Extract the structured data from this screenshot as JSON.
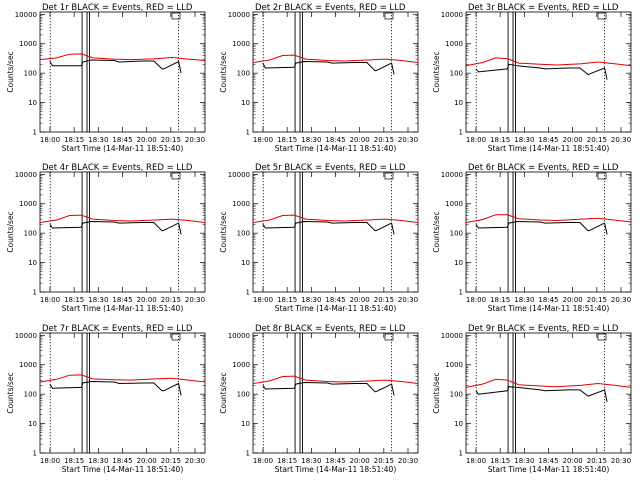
{
  "chart_data": [
    {
      "type": "line",
      "title": "Det 1r BLACK = Events, RED = LLD",
      "xlabel": "Start Time (14-Mar-11 18:51:40)",
      "ylabel": "Counts/sec",
      "x_ticks": [
        "18:00",
        "18:15",
        "18:30",
        "18:45",
        "20:00",
        "20:15",
        "20:30"
      ],
      "y_ticks": [
        "1",
        "10",
        "100",
        "1000",
        "10000"
      ],
      "yscale": "log",
      "ylim": [
        1,
        12000
      ],
      "vlines_dotted": [
        0.062,
        0.84
      ],
      "vlines_solid": [
        0.255,
        0.285,
        0.3
      ],
      "series": [
        {
          "color": "#000000",
          "x": [
            0.06,
            0.075,
            0.25,
            0.26,
            0.31,
            0.45,
            0.48,
            0.62,
            0.69,
            0.74,
            0.75,
            0.84,
            0.855
          ],
          "y": [
            250,
            180,
            180,
            240,
            280,
            270,
            240,
            260,
            260,
            140,
            140,
            250,
            100
          ]
        },
        {
          "color": "#e00000",
          "x": [
            0,
            0.1,
            0.18,
            0.25,
            0.32,
            0.45,
            0.55,
            0.7,
            0.8,
            0.9,
            1.0
          ],
          "y": [
            290,
            330,
            440,
            450,
            330,
            300,
            290,
            310,
            340,
            300,
            270
          ]
        }
      ]
    },
    {
      "type": "line",
      "title": "Det 2r BLACK = Events, RED = LLD",
      "xlabel": "Start Time (14-Mar-11 18:51:40)",
      "ylabel": "Counts/sec",
      "x_ticks": [
        "18:00",
        "18:15",
        "18:30",
        "18:45",
        "20:00",
        "20:15",
        "20:30"
      ],
      "y_ticks": [
        "1",
        "10",
        "100",
        "1000",
        "10000"
      ],
      "yscale": "log",
      "ylim": [
        1,
        12000
      ],
      "vlines_dotted": [
        0.062,
        0.84
      ],
      "vlines_solid": [
        0.255,
        0.285,
        0.3
      ],
      "series": [
        {
          "color": "#000000",
          "x": [
            0.06,
            0.075,
            0.25,
            0.26,
            0.31,
            0.45,
            0.48,
            0.62,
            0.69,
            0.74,
            0.75,
            0.84,
            0.855
          ],
          "y": [
            220,
            150,
            160,
            220,
            250,
            240,
            220,
            230,
            230,
            120,
            125,
            220,
            90
          ]
        },
        {
          "color": "#e00000",
          "x": [
            0,
            0.1,
            0.18,
            0.25,
            0.32,
            0.45,
            0.55,
            0.7,
            0.8,
            0.9,
            1.0
          ],
          "y": [
            230,
            280,
            400,
            410,
            300,
            270,
            260,
            280,
            300,
            270,
            230
          ]
        }
      ]
    },
    {
      "type": "line",
      "title": "Det 3r BLACK = Events, RED = LLD",
      "xlabel": "Start Time (14-Mar-11 18:51:40)",
      "ylabel": "Counts/sec",
      "x_ticks": [
        "18:00",
        "18:15",
        "18:30",
        "18:45",
        "20:00",
        "20:15",
        "20:30"
      ],
      "y_ticks": [
        "1",
        "10",
        "100",
        "1000",
        "10000"
      ],
      "yscale": "log",
      "ylim": [
        1,
        12000
      ],
      "vlines_dotted": [
        0.062,
        0.84
      ],
      "vlines_solid": [
        0.255,
        0.285,
        0.3
      ],
      "series": [
        {
          "color": "#000000",
          "x": [
            0.06,
            0.075,
            0.25,
            0.26,
            0.31,
            0.45,
            0.48,
            0.62,
            0.69,
            0.74,
            0.75,
            0.84,
            0.855
          ],
          "y": [
            140,
            110,
            140,
            200,
            180,
            150,
            140,
            150,
            150,
            90,
            95,
            150,
            60
          ]
        },
        {
          "color": "#e00000",
          "x": [
            0,
            0.1,
            0.18,
            0.25,
            0.32,
            0.45,
            0.55,
            0.7,
            0.8,
            0.9,
            1.0
          ],
          "y": [
            180,
            230,
            330,
            310,
            220,
            200,
            190,
            210,
            240,
            210,
            180
          ]
        }
      ]
    },
    {
      "type": "line",
      "title": "Det 4r BLACK = Events, RED = LLD",
      "xlabel": "Start Time (14-Mar-11 18:51:40)",
      "ylabel": "Counts/sec",
      "x_ticks": [
        "18:00",
        "18:15",
        "18:30",
        "18:45",
        "20:00",
        "20:15",
        "20:30"
      ],
      "y_ticks": [
        "1",
        "10",
        "100",
        "1000",
        "10000"
      ],
      "yscale": "log",
      "ylim": [
        1,
        12000
      ],
      "vlines_dotted": [
        0.062,
        0.84
      ],
      "vlines_solid": [
        0.255,
        0.285,
        0.3
      ],
      "series": [
        {
          "color": "#000000",
          "x": [
            0.06,
            0.075,
            0.25,
            0.26,
            0.31,
            0.45,
            0.48,
            0.62,
            0.69,
            0.74,
            0.75,
            0.84,
            0.855
          ],
          "y": [
            200,
            150,
            160,
            220,
            250,
            240,
            220,
            230,
            230,
            120,
            125,
            220,
            90
          ]
        },
        {
          "color": "#e00000",
          "x": [
            0,
            0.1,
            0.18,
            0.25,
            0.32,
            0.45,
            0.55,
            0.7,
            0.8,
            0.9,
            1.0
          ],
          "y": [
            230,
            280,
            400,
            410,
            300,
            270,
            260,
            280,
            300,
            270,
            230
          ]
        }
      ]
    },
    {
      "type": "line",
      "title": "Det 5r BLACK = Events, RED = LLD",
      "xlabel": "Start Time (14-Mar-11 18:51:40)",
      "ylabel": "Counts/sec",
      "x_ticks": [
        "18:00",
        "18:15",
        "18:30",
        "18:45",
        "20:00",
        "20:15",
        "20:30"
      ],
      "y_ticks": [
        "1",
        "10",
        "100",
        "1000",
        "10000"
      ],
      "yscale": "log",
      "ylim": [
        1,
        12000
      ],
      "vlines_dotted": [
        0.062,
        0.84
      ],
      "vlines_solid": [
        0.255,
        0.285,
        0.3
      ],
      "series": [
        {
          "color": "#000000",
          "x": [
            0.06,
            0.075,
            0.25,
            0.26,
            0.31,
            0.45,
            0.48,
            0.62,
            0.69,
            0.74,
            0.75,
            0.84,
            0.855
          ],
          "y": [
            200,
            150,
            160,
            220,
            250,
            240,
            220,
            230,
            230,
            120,
            125,
            220,
            90
          ]
        },
        {
          "color": "#e00000",
          "x": [
            0,
            0.1,
            0.18,
            0.25,
            0.32,
            0.45,
            0.55,
            0.7,
            0.8,
            0.9,
            1.0
          ],
          "y": [
            230,
            280,
            400,
            410,
            300,
            270,
            260,
            280,
            300,
            270,
            230
          ]
        }
      ]
    },
    {
      "type": "line",
      "title": "Det 6r BLACK = Events, RED = LLD",
      "xlabel": "Start Time (14-Mar-11 18:51:40)",
      "ylabel": "Counts/sec",
      "x_ticks": [
        "18:00",
        "18:15",
        "18:30",
        "18:45",
        "20:00",
        "20:15",
        "20:30"
      ],
      "y_ticks": [
        "1",
        "10",
        "100",
        "1000",
        "10000"
      ],
      "yscale": "log",
      "ylim": [
        1,
        12000
      ],
      "vlines_dotted": [
        0.062,
        0.84
      ],
      "vlines_solid": [
        0.255,
        0.285,
        0.3
      ],
      "series": [
        {
          "color": "#000000",
          "x": [
            0.06,
            0.075,
            0.25,
            0.26,
            0.31,
            0.45,
            0.48,
            0.62,
            0.69,
            0.74,
            0.75,
            0.84,
            0.855
          ],
          "y": [
            200,
            150,
            160,
            220,
            250,
            240,
            220,
            230,
            230,
            120,
            125,
            220,
            90
          ]
        },
        {
          "color": "#e00000",
          "x": [
            0,
            0.1,
            0.18,
            0.25,
            0.32,
            0.45,
            0.55,
            0.7,
            0.8,
            0.9,
            1.0
          ],
          "y": [
            230,
            290,
            420,
            420,
            310,
            280,
            270,
            300,
            320,
            280,
            240
          ]
        }
      ]
    },
    {
      "type": "line",
      "title": "Det 7r BLACK = Events, RED = LLD",
      "xlabel": "Start Time (14-Mar-11 18:51:40)",
      "ylabel": "Counts/sec",
      "x_ticks": [
        "18:00",
        "18:15",
        "18:30",
        "18:45",
        "20:00",
        "20:15",
        "20:30"
      ],
      "y_ticks": [
        "1",
        "10",
        "100",
        "1000",
        "10000"
      ],
      "yscale": "log",
      "ylim": [
        1,
        12000
      ],
      "vlines_dotted": [
        0.062,
        0.84
      ],
      "vlines_solid": [
        0.255,
        0.285,
        0.3
      ],
      "series": [
        {
          "color": "#000000",
          "x": [
            0.06,
            0.075,
            0.25,
            0.26,
            0.31,
            0.45,
            0.48,
            0.62,
            0.69,
            0.74,
            0.75,
            0.84,
            0.855
          ],
          "y": [
            220,
            160,
            170,
            240,
            270,
            260,
            230,
            240,
            240,
            130,
            130,
            230,
            90
          ]
        },
        {
          "color": "#e00000",
          "x": [
            0,
            0.1,
            0.18,
            0.25,
            0.32,
            0.45,
            0.55,
            0.7,
            0.8,
            0.9,
            1.0
          ],
          "y": [
            260,
            320,
            440,
            450,
            330,
            310,
            300,
            330,
            350,
            300,
            260
          ]
        }
      ]
    },
    {
      "type": "line",
      "title": "Det 8r BLACK = Events, RED = LLD",
      "xlabel": "Start Time (14-Mar-11 18:51:40)",
      "ylabel": "Counts/sec",
      "x_ticks": [
        "18:00",
        "18:15",
        "18:30",
        "18:45",
        "20:00",
        "20:15",
        "20:30"
      ],
      "y_ticks": [
        "1",
        "10",
        "100",
        "1000",
        "10000"
      ],
      "yscale": "log",
      "ylim": [
        1,
        12000
      ],
      "vlines_dotted": [
        0.062,
        0.84
      ],
      "vlines_solid": [
        0.255,
        0.285,
        0.3
      ],
      "series": [
        {
          "color": "#000000",
          "x": [
            0.06,
            0.075,
            0.25,
            0.26,
            0.31,
            0.45,
            0.48,
            0.62,
            0.69,
            0.74,
            0.75,
            0.84,
            0.855
          ],
          "y": [
            200,
            150,
            160,
            220,
            250,
            240,
            220,
            230,
            230,
            120,
            125,
            220,
            90
          ]
        },
        {
          "color": "#e00000",
          "x": [
            0,
            0.1,
            0.18,
            0.25,
            0.32,
            0.45,
            0.55,
            0.7,
            0.8,
            0.9,
            1.0
          ],
          "y": [
            230,
            280,
            400,
            410,
            300,
            270,
            260,
            280,
            300,
            270,
            230
          ]
        }
      ]
    },
    {
      "type": "line",
      "title": "Det 9r BLACK = Events, RED = LLD",
      "xlabel": "Start Time (14-Mar-11 18:51:40)",
      "ylabel": "Counts/sec",
      "x_ticks": [
        "18:00",
        "18:15",
        "18:30",
        "18:45",
        "20:00",
        "20:15",
        "20:30"
      ],
      "y_ticks": [
        "1",
        "10",
        "100",
        "1000",
        "10000"
      ],
      "yscale": "log",
      "ylim": [
        1,
        12000
      ],
      "vlines_dotted": [
        0.062,
        0.84
      ],
      "vlines_solid": [
        0.255,
        0.285,
        0.3
      ],
      "series": [
        {
          "color": "#000000",
          "x": [
            0.06,
            0.075,
            0.25,
            0.26,
            0.31,
            0.45,
            0.48,
            0.62,
            0.69,
            0.74,
            0.75,
            0.84,
            0.855
          ],
          "y": [
            130,
            100,
            130,
            180,
            170,
            140,
            130,
            140,
            140,
            85,
            90,
            140,
            55
          ]
        },
        {
          "color": "#e00000",
          "x": [
            0,
            0.1,
            0.18,
            0.25,
            0.32,
            0.45,
            0.55,
            0.7,
            0.8,
            0.9,
            1.0
          ],
          "y": [
            170,
            220,
            320,
            300,
            210,
            190,
            180,
            200,
            230,
            200,
            170
          ]
        }
      ]
    }
  ]
}
